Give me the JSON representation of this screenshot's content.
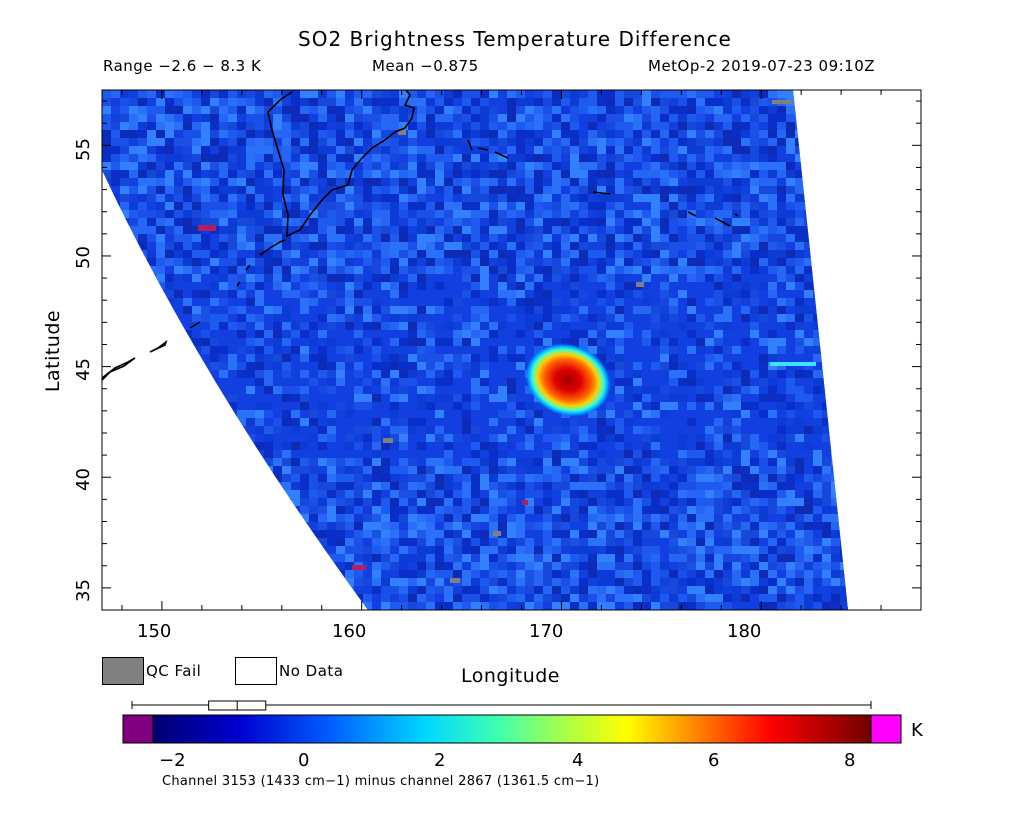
{
  "header": {
    "title": "SO2 Brightness Temperature Difference",
    "range": "Range −2.6 − 8.3 K",
    "mean": "Mean −0.875",
    "satellite_time": "MetOp-2 2019-07-23 09:10Z"
  },
  "axes": {
    "xlabel": "Longitude",
    "ylabel": "Latitude",
    "xticks": [
      "150",
      "160",
      "170",
      "180"
    ],
    "yticks": [
      "55",
      "50",
      "45",
      "40",
      "35"
    ]
  },
  "legend": {
    "qc_fail": "QC Fail",
    "no_data": "No Data",
    "qc_fail_color": "#808080",
    "no_data_color": "#ffffff"
  },
  "colorbar": {
    "unit": "K",
    "ticks": [
      "−2",
      "0",
      "2",
      "4",
      "6",
      "8"
    ],
    "caption": "Channel 3153 (1433 cm−1) minus channel 2867 (1361.5 cm−1)",
    "low_color": "#800080",
    "high_color": "#ff00ff"
  },
  "chart_data": {
    "type": "heatmap",
    "title": "SO2 Brightness Temperature Difference",
    "xlabel": "Longitude",
    "ylabel": "Latitude",
    "xlim": [
      147,
      188
    ],
    "ylim": [
      34,
      57.5
    ],
    "value_range": [
      -2.6,
      8.3
    ],
    "mean": -0.875,
    "unit": "K",
    "colorbar_range": [
      -2.6,
      8.3
    ],
    "hotspot": {
      "lon": 171,
      "lat": 44.4,
      "peak_value": 8.3
    },
    "boxplot": {
      "min": -2.6,
      "q1": -1.4,
      "median": -1.0,
      "q3": -0.6,
      "max": 8.3
    }
  }
}
